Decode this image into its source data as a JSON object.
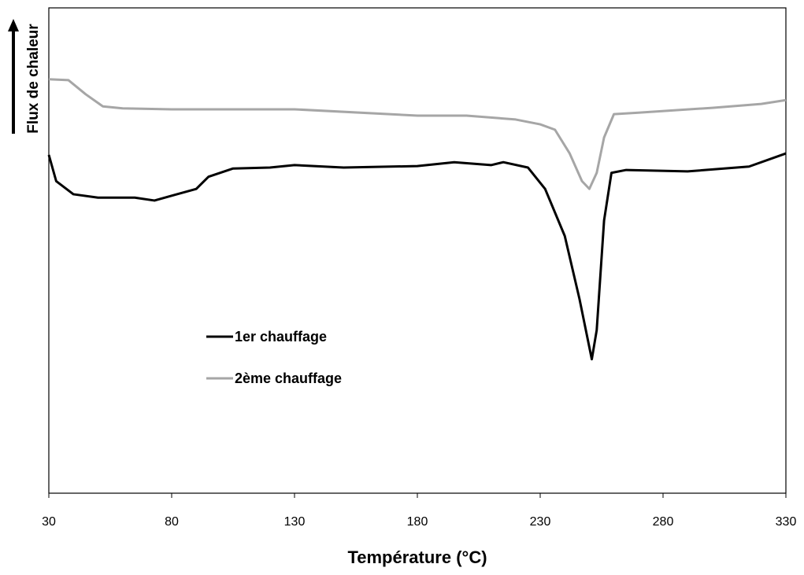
{
  "chart_data": {
    "type": "line",
    "x_label": "Température (°C)",
    "y_label": "Flux  de chaleur",
    "xlim": [
      30,
      330
    ],
    "xticks": [
      30,
      80,
      130,
      180,
      230,
      280,
      330
    ],
    "ylim": [
      0,
      100
    ],
    "series": [
      {
        "name": "1er chauffage",
        "color": "#000000",
        "x": [
          30,
          33,
          40,
          50,
          65,
          73,
          80,
          90,
          95,
          105,
          120,
          130,
          150,
          180,
          195,
          210,
          215,
          225,
          232,
          240,
          246,
          251,
          253,
          256,
          259,
          265,
          290,
          315,
          330
        ],
        "values": [
          69.7,
          64.3,
          61.6,
          60.9,
          60.9,
          60.3,
          61.3,
          62.7,
          65.2,
          66.9,
          67.1,
          67.6,
          67.1,
          67.4,
          68.2,
          67.6,
          68.2,
          67.1,
          62.7,
          53.0,
          40.0,
          27.6,
          33.6,
          56.2,
          66.0,
          66.6,
          66.3,
          67.3,
          70.0
        ]
      },
      {
        "name": "2ème chauffage",
        "color": "#a6a6a6",
        "x": [
          30,
          38,
          45,
          52,
          60,
          80,
          130,
          180,
          200,
          220,
          230,
          236,
          242,
          247,
          250,
          253,
          256,
          260,
          270,
          300,
          320,
          330
        ],
        "values": [
          85.3,
          85.1,
          82.2,
          79.7,
          79.3,
          79.1,
          79.1,
          77.8,
          77.8,
          77.0,
          76.0,
          74.9,
          70.0,
          64.3,
          62.7,
          66.0,
          73.3,
          78.1,
          78.4,
          79.4,
          80.2,
          81.0
        ]
      }
    ]
  }
}
